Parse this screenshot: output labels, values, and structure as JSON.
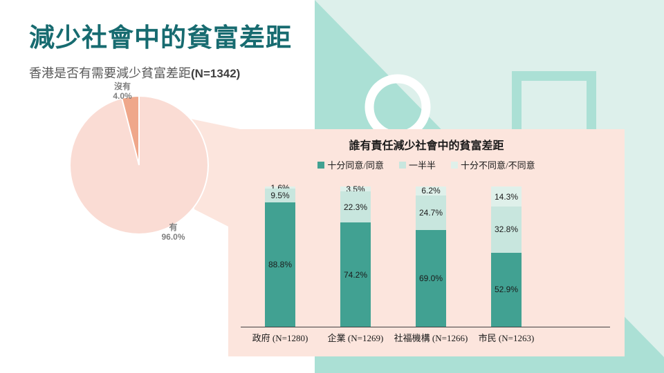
{
  "slide": {
    "title": "減少社會中的貧富差距",
    "subtitle": "香港是否有需要減少貧富差距",
    "subtitle_sample": "(N=1342)"
  },
  "pie_section": {
    "no_label": "沒有",
    "no_value": "4.0%",
    "yes_label": "有",
    "yes_value": "96.0%"
  },
  "bar_section": {
    "title": "誰有責任減少社會中的貧富差距"
  },
  "colors": {
    "title_teal": "#176b70",
    "panel_pink": "#fce5dd",
    "pie_yes_pink": "#fadcd4",
    "pie_no_salmon": "#efa78a",
    "pie_border": "#ffffff",
    "mint_light": "#ddf0eb",
    "mint_dark": "#abe0d5",
    "bar_agree_teal": "#41a192",
    "bar_half_teal": "#c8e6de",
    "bar_disagree_teal": "#dff0ea",
    "pie_label_gray": "#7f7f7f",
    "axis_gray": "#404040"
  },
  "chart_data": [
    {
      "type": "pie",
      "title": "香港是否有需要減少貧富差距 (N=1342)",
      "labels": [
        "有",
        "沒有"
      ],
      "values": [
        96.0,
        4.0
      ],
      "colors": [
        "#fadcd4",
        "#efa78a"
      ],
      "start_angle_deg": 0,
      "legend_position": "none"
    },
    {
      "type": "bar",
      "stacked": true,
      "orientation": "vertical",
      "title": "誰有責任減少社會中的貧富差距",
      "categories": [
        "政府 (N=1280)",
        "企業 (N=1269)",
        "社福機構 (N=1266)",
        "市民 (N=1263)"
      ],
      "series": [
        {
          "name": "十分同意/同意",
          "values": [
            88.8,
            74.2,
            69.0,
            52.9
          ],
          "color": "#41a192"
        },
        {
          "name": "一半半",
          "values": [
            9.5,
            22.3,
            24.7,
            32.8
          ],
          "color": "#c8e6de"
        },
        {
          "name": "十分不同意/不同意",
          "values": [
            1.6,
            3.5,
            6.2,
            14.3
          ],
          "color": "#dff0ea"
        }
      ],
      "ylim": [
        0,
        100
      ],
      "value_suffix": "%",
      "grid": false,
      "legend_position": "top"
    }
  ]
}
